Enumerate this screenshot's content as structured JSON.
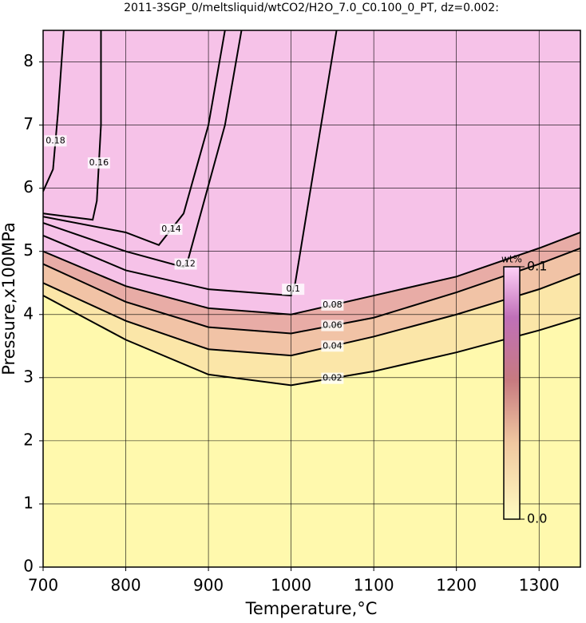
{
  "chart_data": {
    "type": "contour",
    "title": "2011-3SGP_0/meltsliquid/wtCO2/H2O_7.0_C0.100_0_PT, dz=0.002:",
    "x_label": "Temperature,°C",
    "y_label": "Pressure,x100MPa",
    "xlim": [
      700,
      1350
    ],
    "ylim": [
      0,
      8.5
    ],
    "xticks": [
      700,
      800,
      900,
      1000,
      1100,
      1200,
      1300
    ],
    "yticks": [
      0,
      1,
      2,
      3,
      4,
      5,
      6,
      7,
      8
    ],
    "grid": true,
    "base_color": "#fff9ad",
    "contours": [
      {
        "level": 0.02,
        "fill": "#fbe6a8",
        "x": [
          700,
          800,
          900,
          1000,
          1100,
          1200,
          1300,
          1350
        ],
        "y": [
          4.3,
          3.6,
          3.05,
          2.88,
          3.1,
          3.4,
          3.75,
          3.95
        ]
      },
      {
        "level": 0.04,
        "fill": "#f1c3a6",
        "x": [
          700,
          800,
          900,
          1000,
          1100,
          1200,
          1300,
          1350
        ],
        "y": [
          4.5,
          3.9,
          3.45,
          3.35,
          3.65,
          4.0,
          4.4,
          4.65
        ]
      },
      {
        "level": 0.06,
        "fill": "#e8aca6",
        "x": [
          700,
          800,
          900,
          1000,
          1100,
          1200,
          1300,
          1350
        ],
        "y": [
          4.8,
          4.2,
          3.8,
          3.7,
          3.95,
          4.35,
          4.8,
          5.05
        ]
      },
      {
        "level": 0.08,
        "fill": "#f6c2e8",
        "x": [
          700,
          800,
          900,
          1000,
          1100,
          1200,
          1300,
          1350
        ],
        "y": [
          5.0,
          4.45,
          4.1,
          4.0,
          4.3,
          4.6,
          5.05,
          5.3
        ]
      },
      {
        "level": 0.1,
        "x": [
          700,
          800,
          900,
          1000,
          1005,
          1030,
          1055
        ],
        "y": [
          5.25,
          4.7,
          4.4,
          4.3,
          4.5,
          6.5,
          8.5
        ]
      },
      {
        "level": 0.12,
        "x": [
          700,
          800,
          870,
          875,
          920,
          940
        ],
        "y": [
          5.45,
          5.0,
          4.75,
          4.85,
          7.0,
          8.5
        ]
      },
      {
        "level": 0.14,
        "x": [
          700,
          800,
          840,
          870,
          900,
          920
        ],
        "y": [
          5.55,
          5.3,
          5.1,
          5.6,
          7.0,
          8.5
        ]
      },
      {
        "level": 0.16,
        "x": [
          700,
          760,
          765,
          770,
          770
        ],
        "y": [
          5.6,
          5.5,
          5.8,
          7.0,
          8.5
        ]
      },
      {
        "level": 0.18,
        "x": [
          700,
          712,
          718,
          725
        ],
        "y": [
          5.95,
          6.3,
          7.2,
          8.5
        ]
      }
    ],
    "colorbar": {
      "label": "wt%",
      "ticks": [
        {
          "value": 0,
          "label": "0.0"
        },
        0.1
      ]
    }
  }
}
